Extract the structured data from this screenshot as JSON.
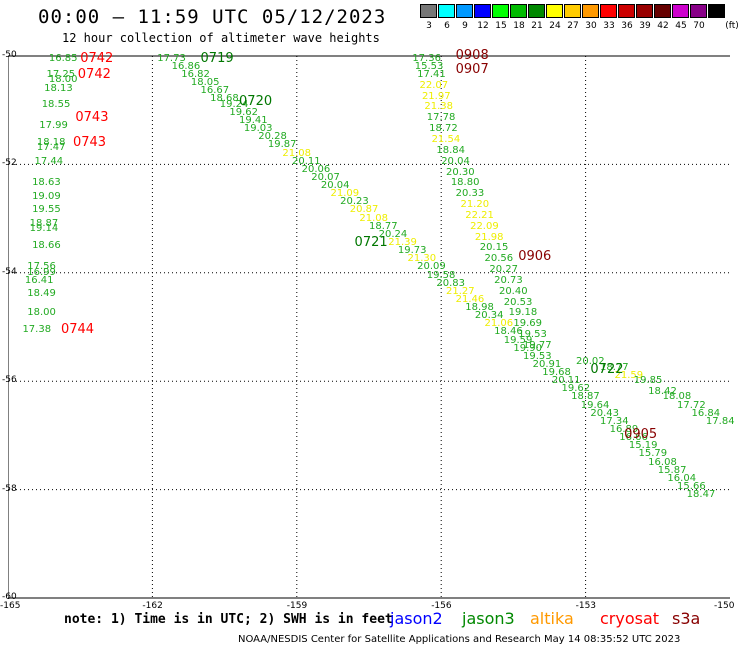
{
  "title": "00:00 – 11:59 UTC 05/12/2023",
  "subtitle": "12 hour collection of altimeter wave heights",
  "scale": {
    "unit": "(ft)",
    "bins": [
      {
        "label": "3",
        "color": "#777777"
      },
      {
        "label": "6",
        "color": "#00ffff"
      },
      {
        "label": "9",
        "color": "#0099ff"
      },
      {
        "label": "12",
        "color": "#0000ff"
      },
      {
        "label": "15",
        "color": "#00ff00"
      },
      {
        "label": "18",
        "color": "#00bb00"
      },
      {
        "label": "21",
        "color": "#008800"
      },
      {
        "label": "24",
        "color": "#ffff00"
      },
      {
        "label": "27",
        "color": "#ffcc00"
      },
      {
        "label": "30",
        "color": "#ff9900"
      },
      {
        "label": "33",
        "color": "#ff0000"
      },
      {
        "label": "36",
        "color": "#cc0000"
      },
      {
        "label": "39",
        "color": "#990000"
      },
      {
        "label": "42",
        "color": "#660000"
      },
      {
        "label": "45",
        "color": "#cc00cc"
      },
      {
        "label": "70",
        "color": "#880088"
      },
      {
        "label": "",
        "color": "#000000"
      }
    ]
  },
  "axes": {
    "lat_ticks": [
      "-50",
      "-52",
      "-54",
      "-56",
      "-58",
      "-60"
    ],
    "lon_ticks": [
      "-165",
      "-162",
      "-159",
      "-156",
      "-153",
      "-150"
    ]
  },
  "colors": {
    "green": "#22aa22",
    "yellow": "#eeee00",
    "red": "#ff0000",
    "darkred": "#880000",
    "darkgreen": "#007700"
  },
  "map_data": {
    "lon_range": [
      -165,
      -150
    ],
    "lat_range": [
      -60,
      -50
    ],
    "passes": [
      {
        "label": "0742",
        "lon": -163.5,
        "lat": -50.05,
        "color": "red"
      },
      {
        "label": "0742",
        "lon": -163.55,
        "lat": -50.35,
        "color": "red"
      },
      {
        "label": "0743",
        "lon": -163.6,
        "lat": -51.15,
        "color": "red"
      },
      {
        "label": "0743",
        "lon": -163.65,
        "lat": -51.6,
        "color": "red"
      },
      {
        "label": "0744",
        "lon": -163.9,
        "lat": -55.05,
        "color": "red"
      },
      {
        "label": "0719",
        "lon": -161.0,
        "lat": -50.05,
        "color": "darkgreen"
      },
      {
        "label": "0720",
        "lon": -160.2,
        "lat": -50.85,
        "color": "darkgreen"
      },
      {
        "label": "0721",
        "lon": -157.8,
        "lat": -53.45,
        "color": "darkgreen"
      },
      {
        "label": "0722",
        "lon": -152.9,
        "lat": -55.8,
        "color": "darkgreen"
      },
      {
        "label": "0908",
        "lon": -155.7,
        "lat": -50.0,
        "color": "darkred"
      },
      {
        "label": "0907",
        "lon": -155.7,
        "lat": -50.25,
        "color": "darkred"
      },
      {
        "label": "0906",
        "lon": -154.4,
        "lat": -53.7,
        "color": "darkred"
      },
      {
        "label": "0905",
        "lon": -152.2,
        "lat": -57.0,
        "color": "darkred"
      }
    ],
    "values": [
      {
        "v": "16.85",
        "lon": -164.15,
        "lat": -50.05,
        "c": "green"
      },
      {
        "v": "17.25",
        "lon": -164.2,
        "lat": -50.35,
        "c": "green"
      },
      {
        "v": "18.00",
        "lon": -164.15,
        "lat": -50.45,
        "c": "green"
      },
      {
        "v": "18.13",
        "lon": -164.25,
        "lat": -50.6,
        "c": "green"
      },
      {
        "v": "18.55",
        "lon": -164.3,
        "lat": -50.9,
        "c": "green"
      },
      {
        "v": "17.99",
        "lon": -164.35,
        "lat": -51.3,
        "c": "green"
      },
      {
        "v": "18.18",
        "lon": -164.4,
        "lat": -51.6,
        "c": "green"
      },
      {
        "v": "17.47",
        "lon": -164.4,
        "lat": -51.7,
        "c": "green"
      },
      {
        "v": "17.44",
        "lon": -164.45,
        "lat": -51.95,
        "c": "green"
      },
      {
        "v": "18.63",
        "lon": -164.5,
        "lat": -52.35,
        "c": "green"
      },
      {
        "v": "19.09",
        "lon": -164.5,
        "lat": -52.6,
        "c": "green"
      },
      {
        "v": "19.55",
        "lon": -164.5,
        "lat": -52.85,
        "c": "green"
      },
      {
        "v": "18.87",
        "lon": -164.55,
        "lat": -53.1,
        "c": "green"
      },
      {
        "v": "19.14",
        "lon": -164.55,
        "lat": -53.2,
        "c": "green"
      },
      {
        "v": "18.66",
        "lon": -164.5,
        "lat": -53.5,
        "c": "green"
      },
      {
        "v": "17.56",
        "lon": -164.6,
        "lat": -53.9,
        "c": "green"
      },
      {
        "v": "16.99",
        "lon": -164.6,
        "lat": -54.0,
        "c": "green"
      },
      {
        "v": "16.41",
        "lon": -164.65,
        "lat": -54.15,
        "c": "green"
      },
      {
        "v": "18.49",
        "lon": -164.6,
        "lat": -54.4,
        "c": "green"
      },
      {
        "v": "18.00",
        "lon": -164.6,
        "lat": -54.75,
        "c": "green"
      },
      {
        "v": "17.38",
        "lon": -164.7,
        "lat": -55.05,
        "c": "green"
      },
      {
        "v": "17.73",
        "lon": -161.9,
        "lat": -50.05,
        "c": "green"
      },
      {
        "v": "16.86",
        "lon": -161.6,
        "lat": -50.2,
        "c": "green"
      },
      {
        "v": "16.82",
        "lon": -161.4,
        "lat": -50.35,
        "c": "green"
      },
      {
        "v": "18.05",
        "lon": -161.2,
        "lat": -50.5,
        "c": "green"
      },
      {
        "v": "16.67",
        "lon": -161.0,
        "lat": -50.65,
        "c": "green"
      },
      {
        "v": "18.68",
        "lon": -160.8,
        "lat": -50.8,
        "c": "green"
      },
      {
        "v": "19.24",
        "lon": -160.6,
        "lat": -50.9,
        "c": "green"
      },
      {
        "v": "19.62",
        "lon": -160.4,
        "lat": -51.05,
        "c": "green"
      },
      {
        "v": "19.41",
        "lon": -160.2,
        "lat": -51.2,
        "c": "green"
      },
      {
        "v": "19.03",
        "lon": -160.1,
        "lat": -51.35,
        "c": "green"
      },
      {
        "v": "20.28",
        "lon": -159.8,
        "lat": -51.5,
        "c": "green"
      },
      {
        "v": "19.87",
        "lon": -159.6,
        "lat": -51.65,
        "c": "green"
      },
      {
        "v": "21.08",
        "lon": -159.3,
        "lat": -51.8,
        "c": "yellow"
      },
      {
        "v": "20.11",
        "lon": -159.1,
        "lat": -51.95,
        "c": "green"
      },
      {
        "v": "20.06",
        "lon": -158.9,
        "lat": -52.1,
        "c": "green"
      },
      {
        "v": "20.07",
        "lon": -158.7,
        "lat": -52.25,
        "c": "green"
      },
      {
        "v": "20.04",
        "lon": -158.5,
        "lat": -52.4,
        "c": "green"
      },
      {
        "v": "21.09",
        "lon": -158.3,
        "lat": -52.55,
        "c": "yellow"
      },
      {
        "v": "20.23",
        "lon": -158.1,
        "lat": -52.7,
        "c": "green"
      },
      {
        "v": "20.87",
        "lon": -157.9,
        "lat": -52.85,
        "c": "yellow"
      },
      {
        "v": "21.08",
        "lon": -157.7,
        "lat": -53.0,
        "c": "yellow"
      },
      {
        "v": "18.77",
        "lon": -157.5,
        "lat": -53.15,
        "c": "green"
      },
      {
        "v": "20.24",
        "lon": -157.3,
        "lat": -53.3,
        "c": "green"
      },
      {
        "v": "21.39",
        "lon": -157.1,
        "lat": -53.45,
        "c": "yellow"
      },
      {
        "v": "19.73",
        "lon": -156.9,
        "lat": -53.6,
        "c": "green"
      },
      {
        "v": "21.30",
        "lon": -156.7,
        "lat": -53.75,
        "c": "yellow"
      },
      {
        "v": "20.09",
        "lon": -156.5,
        "lat": -53.9,
        "c": "green"
      },
      {
        "v": "19.58",
        "lon": -156.3,
        "lat": -54.05,
        "c": "green"
      },
      {
        "v": "20.83",
        "lon": -156.1,
        "lat": -54.2,
        "c": "green"
      },
      {
        "v": "21.27",
        "lon": -155.9,
        "lat": -54.35,
        "c": "yellow"
      },
      {
        "v": "21.46",
        "lon": -155.7,
        "lat": -54.5,
        "c": "yellow"
      },
      {
        "v": "18.98",
        "lon": -155.5,
        "lat": -54.65,
        "c": "green"
      },
      {
        "v": "20.34",
        "lon": -155.3,
        "lat": -54.8,
        "c": "green"
      },
      {
        "v": "21.06",
        "lon": -155.1,
        "lat": -54.95,
        "c": "yellow"
      },
      {
        "v": "18.46",
        "lon": -154.9,
        "lat": -55.1,
        "c": "green"
      },
      {
        "v": "19.59",
        "lon": -154.7,
        "lat": -55.25,
        "c": "green"
      },
      {
        "v": "19.90",
        "lon": -154.5,
        "lat": -55.4,
        "c": "green"
      },
      {
        "v": "19.53",
        "lon": -154.3,
        "lat": -55.55,
        "c": "green"
      },
      {
        "v": "20.91",
        "lon": -154.1,
        "lat": -55.7,
        "c": "green"
      },
      {
        "v": "19.68",
        "lon": -153.9,
        "lat": -55.85,
        "c": "green"
      },
      {
        "v": "20.11",
        "lon": -153.7,
        "lat": -56.0,
        "c": "green"
      },
      {
        "v": "19.62",
        "lon": -153.5,
        "lat": -56.15,
        "c": "green"
      },
      {
        "v": "18.87",
        "lon": -153.3,
        "lat": -56.3,
        "c": "green"
      },
      {
        "v": "19.64",
        "lon": -153.1,
        "lat": -56.45,
        "c": "green"
      },
      {
        "v": "20.43",
        "lon": -152.9,
        "lat": -56.6,
        "c": "green"
      },
      {
        "v": "17.34",
        "lon": -152.7,
        "lat": -56.75,
        "c": "green"
      },
      {
        "v": "16.89",
        "lon": -152.5,
        "lat": -56.9,
        "c": "green"
      },
      {
        "v": "16.66",
        "lon": -152.3,
        "lat": -57.05,
        "c": "green"
      },
      {
        "v": "15.19",
        "lon": -152.1,
        "lat": -57.2,
        "c": "green"
      },
      {
        "v": "15.79",
        "lon": -151.9,
        "lat": -57.35,
        "c": "green"
      },
      {
        "v": "16.08",
        "lon": -151.7,
        "lat": -57.5,
        "c": "green"
      },
      {
        "v": "15.87",
        "lon": -151.5,
        "lat": -57.65,
        "c": "green"
      },
      {
        "v": "16.04",
        "lon": -151.3,
        "lat": -57.8,
        "c": "green"
      },
      {
        "v": "15.66",
        "lon": -151.1,
        "lat": -57.95,
        "c": "green"
      },
      {
        "v": "18.47",
        "lon": -150.9,
        "lat": -58.1,
        "c": "green"
      },
      {
        "v": "17.36",
        "lon": -156.6,
        "lat": -50.05,
        "c": "green"
      },
      {
        "v": "15.53",
        "lon": -156.55,
        "lat": -50.2,
        "c": "green"
      },
      {
        "v": "17.41",
        "lon": -156.5,
        "lat": -50.35,
        "c": "green"
      },
      {
        "v": "22.07",
        "lon": -156.45,
        "lat": -50.55,
        "c": "yellow"
      },
      {
        "v": "21.97",
        "lon": -156.4,
        "lat": -50.75,
        "c": "yellow"
      },
      {
        "v": "21.38",
        "lon": -156.35,
        "lat": -50.95,
        "c": "yellow"
      },
      {
        "v": "17.78",
        "lon": -156.3,
        "lat": -51.15,
        "c": "green"
      },
      {
        "v": "18.72",
        "lon": -156.25,
        "lat": -51.35,
        "c": "green"
      },
      {
        "v": "21.54",
        "lon": -156.2,
        "lat": -51.55,
        "c": "yellow"
      },
      {
        "v": "18.84",
        "lon": -156.1,
        "lat": -51.75,
        "c": "green"
      },
      {
        "v": "20.04",
        "lon": -156.0,
        "lat": -51.95,
        "c": "green"
      },
      {
        "v": "20.30",
        "lon": -155.9,
        "lat": -52.15,
        "c": "green"
      },
      {
        "v": "18.80",
        "lon": -155.8,
        "lat": -52.35,
        "c": "green"
      },
      {
        "v": "20.33",
        "lon": -155.7,
        "lat": -52.55,
        "c": "green"
      },
      {
        "v": "21.20",
        "lon": -155.6,
        "lat": -52.75,
        "c": "yellow"
      },
      {
        "v": "22.21",
        "lon": -155.5,
        "lat": -52.95,
        "c": "yellow"
      },
      {
        "v": "22.09",
        "lon": -155.4,
        "lat": -53.15,
        "c": "yellow"
      },
      {
        "v": "21.98",
        "lon": -155.3,
        "lat": -53.35,
        "c": "yellow"
      },
      {
        "v": "20.15",
        "lon": -155.2,
        "lat": -53.55,
        "c": "green"
      },
      {
        "v": "20.56",
        "lon": -155.1,
        "lat": -53.75,
        "c": "green"
      },
      {
        "v": "20.27",
        "lon": -155.0,
        "lat": -53.95,
        "c": "green"
      },
      {
        "v": "20.73",
        "lon": -154.9,
        "lat": -54.15,
        "c": "green"
      },
      {
        "v": "20.40",
        "lon": -154.8,
        "lat": -54.35,
        "c": "green"
      },
      {
        "v": "20.53",
        "lon": -154.7,
        "lat": -54.55,
        "c": "green"
      },
      {
        "v": "19.18",
        "lon": -154.6,
        "lat": -54.75,
        "c": "green"
      },
      {
        "v": "19.69",
        "lon": -154.5,
        "lat": -54.95,
        "c": "green"
      },
      {
        "v": "19.53",
        "lon": -154.4,
        "lat": -55.15,
        "c": "green"
      },
      {
        "v": "19.77",
        "lon": -154.3,
        "lat": -55.35,
        "c": "green"
      },
      {
        "v": "20.02",
        "lon": -153.2,
        "lat": -55.65,
        "c": "green"
      },
      {
        "v": "18.77",
        "lon": -152.7,
        "lat": -55.75,
        "c": "green"
      },
      {
        "v": "21.59",
        "lon": -152.4,
        "lat": -55.9,
        "c": "yellow"
      },
      {
        "v": "19.85",
        "lon": -152.0,
        "lat": -56.0,
        "c": "green"
      },
      {
        "v": "18.42",
        "lon": -151.7,
        "lat": -56.2,
        "c": "green"
      },
      {
        "v": "18.08",
        "lon": -151.4,
        "lat": -56.3,
        "c": "green"
      },
      {
        "v": "17.72",
        "lon": -151.1,
        "lat": -56.45,
        "c": "green"
      },
      {
        "v": "16.84",
        "lon": -150.8,
        "lat": -56.6,
        "c": "green"
      },
      {
        "v": "17.84",
        "lon": -150.5,
        "lat": -56.75,
        "c": "green"
      }
    ]
  },
  "note": "note: 1) Time is in UTC; 2) SWH is in feet",
  "satellites": [
    {
      "name": "jason2",
      "color": "#0000ff"
    },
    {
      "name": "jason3",
      "color": "#008800"
    },
    {
      "name": "altika",
      "color": "#ff9900"
    },
    {
      "name": "cryosat",
      "color": "#ff0000"
    },
    {
      "name": "s3a",
      "color": "#880000"
    }
  ],
  "footer": "NOAA/NESDIS Center for Satellite Applications and Research    May 14 08:35:52 UTC 2023"
}
